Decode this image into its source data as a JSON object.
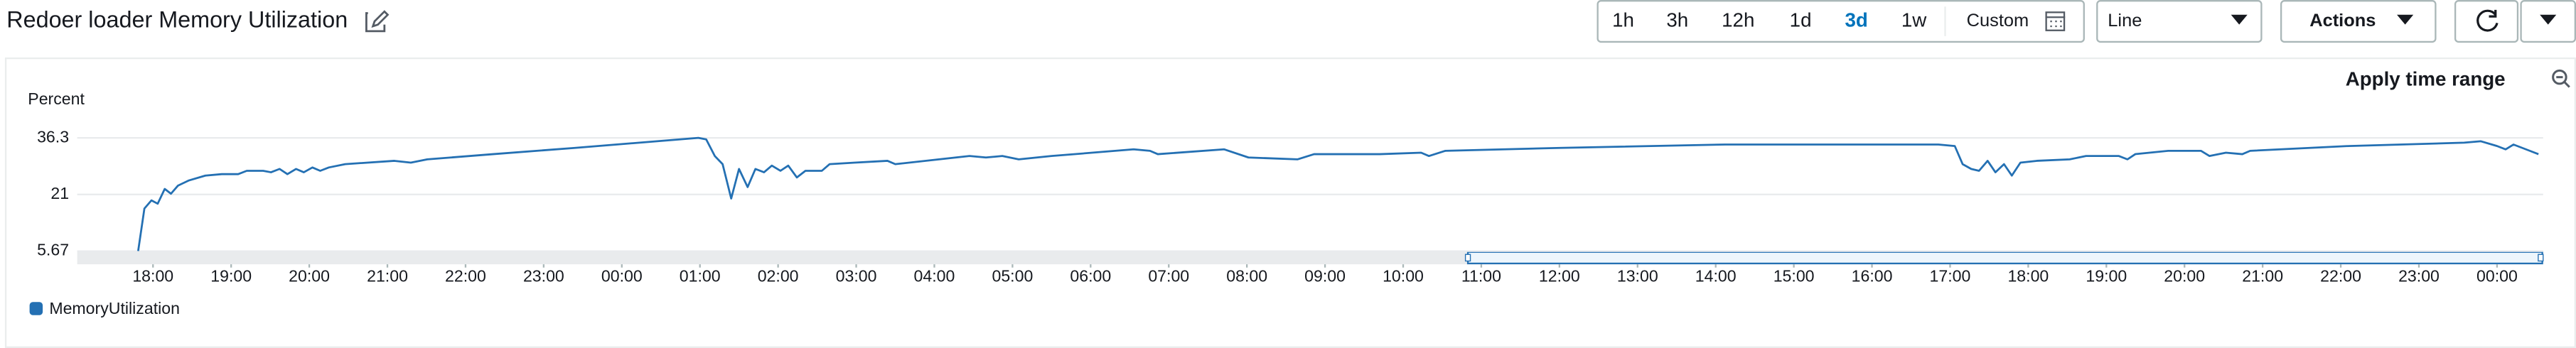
{
  "header": {
    "title": "Redoer loader Memory Utilization",
    "time_ranges": [
      "1h",
      "3h",
      "12h",
      "1d",
      "3d",
      "1w"
    ],
    "selected": "3d",
    "custom": "Custom",
    "chart_type": "Line",
    "actions": "Actions"
  },
  "panel": {
    "apply_time_range": "Apply time range"
  },
  "chart_data": {
    "type": "line",
    "y_label": "Percent",
    "xlim": [
      17.03,
      48.59
    ],
    "ylim": [
      5.67,
      36.3
    ],
    "yticks": [
      5.67,
      21,
      36.3
    ],
    "grid": true,
    "xticks": [
      {
        "value": 18,
        "label": "18:00"
      },
      {
        "value": 19,
        "label": "19:00"
      },
      {
        "value": 20,
        "label": "20:00"
      },
      {
        "value": 21,
        "label": "21:00"
      },
      {
        "value": 22,
        "label": "22:00"
      },
      {
        "value": 23,
        "label": "23:00"
      },
      {
        "value": 24,
        "label": "00:00"
      },
      {
        "value": 25,
        "label": "01:00"
      },
      {
        "value": 26,
        "label": "02:00"
      },
      {
        "value": 27,
        "label": "03:00"
      },
      {
        "value": 28,
        "label": "04:00"
      },
      {
        "value": 29,
        "label": "05:00"
      },
      {
        "value": 30,
        "label": "06:00"
      },
      {
        "value": 31,
        "label": "07:00"
      },
      {
        "value": 32,
        "label": "08:00"
      },
      {
        "value": 33,
        "label": "09:00"
      },
      {
        "value": 34,
        "label": "10:00"
      },
      {
        "value": 35,
        "label": "11:00"
      },
      {
        "value": 36,
        "label": "12:00"
      },
      {
        "value": 37,
        "label": "13:00"
      },
      {
        "value": 38,
        "label": "14:00"
      },
      {
        "value": 39,
        "label": "15:00"
      },
      {
        "value": 40,
        "label": "16:00"
      },
      {
        "value": 41,
        "label": "17:00"
      },
      {
        "value": 42,
        "label": "18:00"
      },
      {
        "value": 43,
        "label": "19:00"
      },
      {
        "value": 44,
        "label": "20:00"
      },
      {
        "value": 45,
        "label": "21:00"
      },
      {
        "value": 46,
        "label": "22:00"
      },
      {
        "value": 47,
        "label": "23:00"
      },
      {
        "value": 48,
        "label": "00:00"
      }
    ],
    "x": [
      17.81,
      17.89,
      17.98,
      18.06,
      18.15,
      18.23,
      18.32,
      18.46,
      18.67,
      18.88,
      19.09,
      19.2,
      19.41,
      19.51,
      19.62,
      19.72,
      19.83,
      19.93,
      20.04,
      20.14,
      20.25,
      20.46,
      21.09,
      21.3,
      21.51,
      22.35,
      23.4,
      24.45,
      24.98,
      25.08,
      25.19,
      25.29,
      25.4,
      25.5,
      25.61,
      25.71,
      25.82,
      25.92,
      26.03,
      26.13,
      26.24,
      26.35,
      26.56,
      26.66,
      26.98,
      27.4,
      27.5,
      28.45,
      28.66,
      28.87,
      29.08,
      29.5,
      30.55,
      30.76,
      30.86,
      31.71,
      32.02,
      32.65,
      32.86,
      33.7,
      34.23,
      34.33,
      34.54,
      36.01,
      38.12,
      40.85,
      41.06,
      41.16,
      41.27,
      41.37,
      41.48,
      41.58,
      41.69,
      41.79,
      41.9,
      42.11,
      42.53,
      42.74,
      43.16,
      43.27,
      43.37,
      43.79,
      44.21,
      44.32,
      44.53,
      44.74,
      44.84,
      46.1,
      47.58,
      47.79,
      48.0,
      48.11,
      48.21,
      48.42,
      48.53
    ],
    "series": [
      {
        "name": "MemoryUtilization",
        "color": "#2470b3",
        "values": [
          5.7,
          17.2,
          19.4,
          18.5,
          22.5,
          21.2,
          23.4,
          24.8,
          26.1,
          26.5,
          26.5,
          27.4,
          27.4,
          27.0,
          27.9,
          26.5,
          27.9,
          27.0,
          28.3,
          27.4,
          28.3,
          29.2,
          30.1,
          29.6,
          30.5,
          31.9,
          33.6,
          35.4,
          36.3,
          35.9,
          31.4,
          29.2,
          19.9,
          27.9,
          23.0,
          27.9,
          27.0,
          28.8,
          27.4,
          28.8,
          25.6,
          27.4,
          27.4,
          29.2,
          29.6,
          30.1,
          29.2,
          31.4,
          31.0,
          31.4,
          30.5,
          31.4,
          33.2,
          32.8,
          31.9,
          33.2,
          31.0,
          30.5,
          31.9,
          31.9,
          32.3,
          31.4,
          32.8,
          33.6,
          34.5,
          34.5,
          34.1,
          29.2,
          27.9,
          27.4,
          30.1,
          27.0,
          29.2,
          26.1,
          29.6,
          30.1,
          30.5,
          31.4,
          31.4,
          30.5,
          31.9,
          32.8,
          32.8,
          31.4,
          32.3,
          31.9,
          32.8,
          34.1,
          35.0,
          35.4,
          34.1,
          33.2,
          34.5,
          32.8,
          31.9
        ]
      }
    ]
  }
}
